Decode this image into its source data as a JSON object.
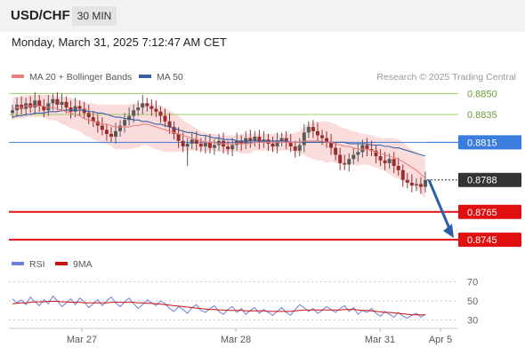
{
  "header": {
    "symbol": "USD/CHF",
    "timeframe": "30 MIN",
    "datetime": "Monday, March 31, 2025 7:12:47 AM CET"
  },
  "legend": {
    "ma20_bb": "MA 20 + Bollinger Bands",
    "ma50": "MA 50",
    "credit": "Research © 2025 Trading Central"
  },
  "rsi_legend": {
    "rsi": "RSI",
    "ma9": "9MA"
  },
  "colors": {
    "ma20": "#e88080",
    "ma50": "#3b5fa0",
    "band_fill": "#f9d6d6",
    "green": "#9ccc65",
    "blue": "#3b7ddd",
    "red": "#e01010",
    "dark": "#333333",
    "candle_up": "#5a5a5a",
    "candle_down": "#9a2e2e",
    "arrow": "#2d5fa8",
    "rsi_line": "#6a80d8",
    "rsi_ma": "#cc1111"
  },
  "chart_data": [
    {
      "type": "candlestick",
      "y_range": [
        0.874,
        0.8856
      ],
      "x_labels": [
        "Mar 27",
        "Mar 28",
        "Mar 31",
        "Apr 5"
      ],
      "levels": [
        {
          "name": "resistance-2",
          "value": 0.885,
          "label": "0.8850",
          "style": "green"
        },
        {
          "name": "resistance-1",
          "value": 0.8835,
          "label": "0.8835",
          "style": "green"
        },
        {
          "name": "pivot",
          "value": 0.8815,
          "label": "0.8815",
          "style": "blue"
        },
        {
          "name": "last-price",
          "value": 0.8788,
          "label": "0.8788",
          "style": "dark"
        },
        {
          "name": "support-1",
          "value": 0.8765,
          "label": "0.8765",
          "style": "red"
        },
        {
          "name": "support-2",
          "value": 0.8745,
          "label": "0.8745",
          "style": "red"
        }
      ],
      "price": [
        0.8838,
        0.8842,
        0.8839,
        0.8843,
        0.884,
        0.8845,
        0.8841,
        0.8838,
        0.8843,
        0.8846,
        0.8842,
        0.8844,
        0.884,
        0.8837,
        0.8841,
        0.8839,
        0.8836,
        0.8833,
        0.883,
        0.8827,
        0.8824,
        0.8821,
        0.8819,
        0.8823,
        0.8827,
        0.8831,
        0.8834,
        0.8838,
        0.884,
        0.8843,
        0.8841,
        0.8839,
        0.8837,
        0.8834,
        0.883,
        0.8826,
        0.8821,
        0.8816,
        0.8812,
        0.8814,
        0.8817,
        0.8814,
        0.8812,
        0.8815,
        0.8811,
        0.8813,
        0.8816,
        0.8812,
        0.881,
        0.8813,
        0.8816,
        0.8814,
        0.8818,
        0.8816,
        0.8819,
        0.8815,
        0.8817,
        0.8814,
        0.8812,
        0.8816,
        0.8818,
        0.8815,
        0.8812,
        0.8809,
        0.8813,
        0.8822,
        0.8826,
        0.8823,
        0.882,
        0.8818,
        0.8815,
        0.8811,
        0.8806,
        0.88,
        0.8799,
        0.8803,
        0.8806,
        0.8808,
        0.8813,
        0.881,
        0.8809,
        0.8805,
        0.8802,
        0.88,
        0.8803,
        0.8798,
        0.8795,
        0.8788,
        0.8786,
        0.8784,
        0.8785,
        0.8783,
        0.8788
      ],
      "ma20": [
        0.8839,
        0.884,
        0.884,
        0.8841,
        0.8841,
        0.8841,
        0.8841,
        0.8841,
        0.884,
        0.884,
        0.8839,
        0.8838,
        0.8837,
        0.8836,
        0.8835,
        0.8834,
        0.8832,
        0.8831,
        0.883,
        0.8829,
        0.8828,
        0.8828,
        0.8827,
        0.8826,
        0.8826,
        0.8826,
        0.8826,
        0.8827,
        0.8827,
        0.8828,
        0.8828,
        0.8827,
        0.8826,
        0.8825,
        0.8824,
        0.8823,
        0.8822,
        0.8821,
        0.882,
        0.8819,
        0.8818,
        0.8817,
        0.8816,
        0.8815,
        0.8815,
        0.8815,
        0.8814,
        0.8814,
        0.8814,
        0.8814,
        0.8814,
        0.8814,
        0.8814,
        0.8814,
        0.8815,
        0.8815,
        0.8815,
        0.8815,
        0.8815,
        0.8815,
        0.8815,
        0.8815,
        0.8815,
        0.8815,
        0.8815,
        0.8816,
        0.8816,
        0.8816,
        0.8816,
        0.8816,
        0.8815,
        0.8815,
        0.8814,
        0.8813,
        0.8812,
        0.8812,
        0.8811,
        0.881,
        0.881,
        0.881,
        0.8809,
        0.8808,
        0.8807,
        0.8806,
        0.8805,
        0.8804,
        0.8803,
        0.8801,
        0.8799,
        0.8797,
        0.8795,
        0.8792,
        0.8789
      ],
      "bb_upper": [
        0.8847,
        0.8848,
        0.8848,
        0.8849,
        0.8849,
        0.8849,
        0.8849,
        0.8849,
        0.8849,
        0.8849,
        0.8848,
        0.8848,
        0.8847,
        0.8847,
        0.8846,
        0.8845,
        0.8844,
        0.8843,
        0.8843,
        0.8842,
        0.8842,
        0.8842,
        0.8842,
        0.8842,
        0.8842,
        0.8842,
        0.8842,
        0.8843,
        0.8843,
        0.8843,
        0.8843,
        0.8843,
        0.8842,
        0.8841,
        0.884,
        0.8838,
        0.8836,
        0.8834,
        0.8831,
        0.8829,
        0.8827,
        0.8825,
        0.8823,
        0.8822,
        0.8821,
        0.8821,
        0.882,
        0.882,
        0.882,
        0.882,
        0.882,
        0.8821,
        0.8821,
        0.8821,
        0.8821,
        0.8821,
        0.8821,
        0.8821,
        0.8821,
        0.8821,
        0.8821,
        0.8821,
        0.8821,
        0.8822,
        0.8823,
        0.8826,
        0.8828,
        0.8829,
        0.883,
        0.883,
        0.883,
        0.8829,
        0.8828,
        0.8826,
        0.8825,
        0.8824,
        0.8823,
        0.8822,
        0.8821,
        0.8821,
        0.882,
        0.8819,
        0.8818,
        0.8818,
        0.8818,
        0.8818,
        0.8817,
        0.8815,
        0.8812,
        0.881,
        0.8808,
        0.8806,
        0.8803
      ],
      "bb_lower": [
        0.8831,
        0.8832,
        0.8832,
        0.8833,
        0.8833,
        0.8833,
        0.8833,
        0.8833,
        0.8831,
        0.8831,
        0.883,
        0.8828,
        0.8827,
        0.8825,
        0.8824,
        0.8823,
        0.882,
        0.8819,
        0.8817,
        0.8816,
        0.8814,
        0.8814,
        0.8812,
        0.881,
        0.881,
        0.881,
        0.881,
        0.8811,
        0.8811,
        0.8813,
        0.8813,
        0.8811,
        0.881,
        0.8809,
        0.8808,
        0.8808,
        0.8808,
        0.8808,
        0.8809,
        0.8809,
        0.8809,
        0.8809,
        0.8809,
        0.8808,
        0.8809,
        0.8809,
        0.8808,
        0.8808,
        0.8808,
        0.8808,
        0.8808,
        0.8807,
        0.8807,
        0.8807,
        0.8809,
        0.8809,
        0.8809,
        0.8809,
        0.8809,
        0.8809,
        0.8809,
        0.8809,
        0.8809,
        0.8808,
        0.8807,
        0.8806,
        0.8804,
        0.8803,
        0.8802,
        0.8802,
        0.88,
        0.8801,
        0.88,
        0.88,
        0.8799,
        0.88,
        0.8799,
        0.8798,
        0.8799,
        0.8799,
        0.8798,
        0.8797,
        0.8796,
        0.8794,
        0.8792,
        0.879,
        0.8789,
        0.8787,
        0.8786,
        0.8784,
        0.8782,
        0.8778,
        0.8775
      ],
      "ma50": [
        0.8833,
        0.8834,
        0.8834,
        0.8835,
        0.8835,
        0.8836,
        0.8836,
        0.8836,
        0.8837,
        0.8837,
        0.8837,
        0.8838,
        0.8838,
        0.8838,
        0.8838,
        0.8838,
        0.8838,
        0.8837,
        0.8837,
        0.8836,
        0.8836,
        0.8835,
        0.8834,
        0.8833,
        0.8833,
        0.8832,
        0.8832,
        0.8831,
        0.8831,
        0.883,
        0.883,
        0.8829,
        0.8828,
        0.8828,
        0.8827,
        0.8826,
        0.8825,
        0.8824,
        0.8823,
        0.8822,
        0.8822,
        0.8821,
        0.882,
        0.882,
        0.8819,
        0.8818,
        0.8818,
        0.8817,
        0.8817,
        0.8817,
        0.8816,
        0.8816,
        0.8816,
        0.8816,
        0.8816,
        0.8816,
        0.8816,
        0.8816,
        0.8816,
        0.8816,
        0.8816,
        0.8816,
        0.8815,
        0.8815,
        0.8815,
        0.8815,
        0.8815,
        0.8815,
        0.8815,
        0.8815,
        0.8815,
        0.8815,
        0.8815,
        0.8815,
        0.8815,
        0.8814,
        0.8814,
        0.8814,
        0.8814,
        0.8814,
        0.8813,
        0.8813,
        0.8813,
        0.8812,
        0.8812,
        0.8811,
        0.8811,
        0.881,
        0.8809,
        0.8808,
        0.8807,
        0.8806,
        0.8805
      ],
      "forecast": {
        "from": 0.8788,
        "to": 0.8745
      }
    },
    {
      "type": "line",
      "name": "rsi-panel",
      "y_range": [
        25,
        75
      ],
      "y_ticks": [
        70,
        50,
        30
      ],
      "rsi": [
        52,
        48,
        51,
        46,
        54,
        49,
        45,
        51,
        47,
        55,
        50,
        44,
        48,
        52,
        46,
        53,
        49,
        43,
        47,
        51,
        45,
        50,
        54,
        48,
        44,
        49,
        53,
        47,
        42,
        46,
        51,
        48,
        45,
        50,
        47,
        42,
        39,
        44,
        41,
        37,
        43,
        46,
        40,
        38,
        42,
        45,
        39,
        36,
        41,
        44,
        38,
        42,
        36,
        40,
        43,
        37,
        41,
        38,
        35,
        39,
        43,
        38,
        35,
        41,
        46,
        43,
        39,
        42,
        37,
        40,
        44,
        41,
        38,
        42,
        45,
        39,
        43,
        36,
        40,
        38,
        42,
        37,
        34,
        39,
        36,
        33,
        38,
        34,
        32,
        35,
        37,
        33,
        36
      ],
      "ma9": [
        47,
        47.5,
        48,
        48,
        48.5,
        49,
        49,
        49,
        49.5,
        49.5,
        49.5,
        49,
        49,
        48.5,
        48.5,
        48.5,
        48,
        48,
        48,
        48,
        48,
        48,
        48.5,
        48.5,
        48.5,
        48.5,
        48.5,
        48.5,
        48,
        48,
        47.5,
        47.5,
        47,
        46.5,
        46,
        45.5,
        45,
        44.5,
        44,
        43.5,
        43,
        42.5,
        42,
        41.5,
        41,
        41,
        40.5,
        40.5,
        40,
        40,
        40,
        40,
        39.5,
        39.5,
        39.5,
        39.5,
        39.5,
        39,
        39,
        39,
        39,
        39,
        39,
        39.5,
        40,
        40.5,
        40.5,
        40.5,
        40.5,
        40.5,
        40.5,
        40.5,
        40.5,
        40.5,
        41,
        41,
        41,
        40.5,
        40,
        40,
        39.5,
        39,
        38.5,
        38,
        38,
        37.5,
        37,
        36.5,
        36,
        35.5,
        35.5,
        35.5,
        35.5
      ]
    }
  ]
}
